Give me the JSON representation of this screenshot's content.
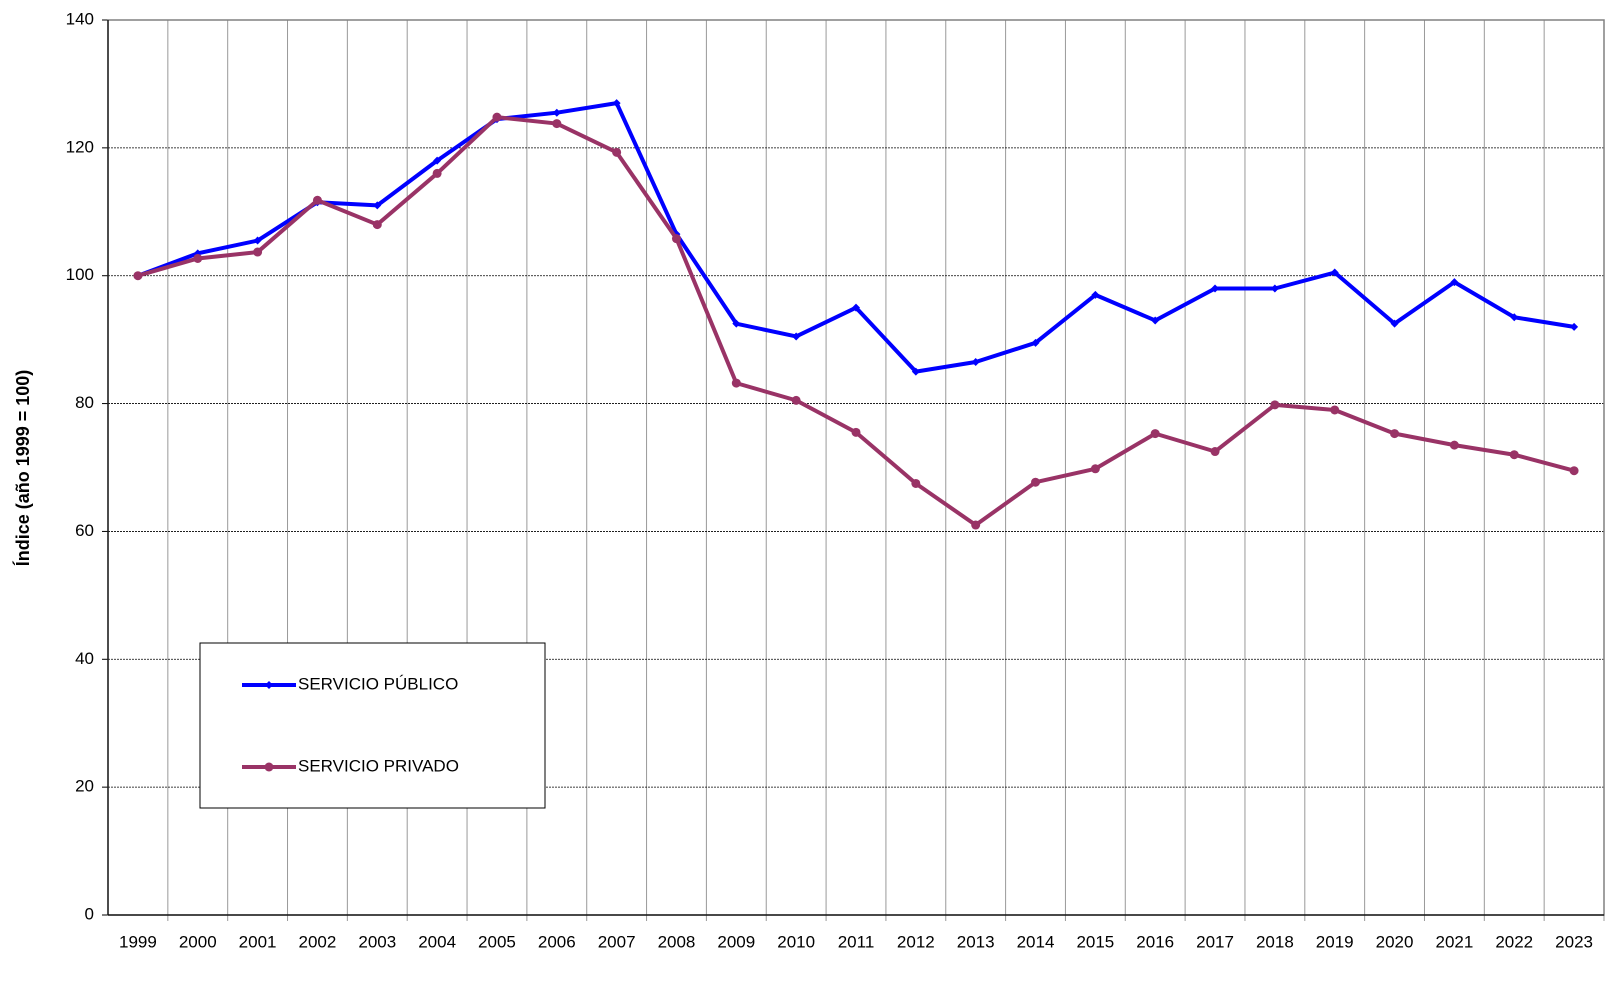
{
  "chart_data": {
    "type": "line",
    "y_label": "Índice (año 1999 = 100)",
    "categories": [
      "1999",
      "2000",
      "2001",
      "2002",
      "2003",
      "2004",
      "2005",
      "2006",
      "2007",
      "2008",
      "2009",
      "2010",
      "2011",
      "2012",
      "2013",
      "2014",
      "2015",
      "2016",
      "2017",
      "2018",
      "2019",
      "2020",
      "2021",
      "2022",
      "2023"
    ],
    "series": [
      {
        "name": "SERVICIO PÚBLICO",
        "color": "#0000ff",
        "marker": "diamond",
        "values": [
          100,
          103.5,
          105.5,
          111.5,
          111,
          118,
          124.5,
          125.5,
          127,
          106.5,
          92.5,
          90.5,
          95,
          85,
          86.5,
          89.5,
          97,
          93,
          98,
          98,
          100.5,
          92.5,
          99,
          93.5,
          92
        ]
      },
      {
        "name": "SERVICIO PRIVADO",
        "color": "#993366",
        "marker": "circle",
        "values": [
          100,
          102.7,
          103.7,
          111.8,
          108,
          116,
          124.8,
          123.8,
          119.3,
          105.8,
          83.2,
          80.5,
          75.5,
          67.5,
          61,
          67.7,
          69.8,
          75.3,
          72.5,
          79.8,
          79,
          75.3,
          73.5,
          72,
          69.5
        ]
      }
    ],
    "ylim": [
      0,
      140
    ],
    "yticks": [
      0,
      20,
      40,
      60,
      80,
      100,
      120,
      140
    ],
    "grid": true,
    "legend": "lower left"
  }
}
